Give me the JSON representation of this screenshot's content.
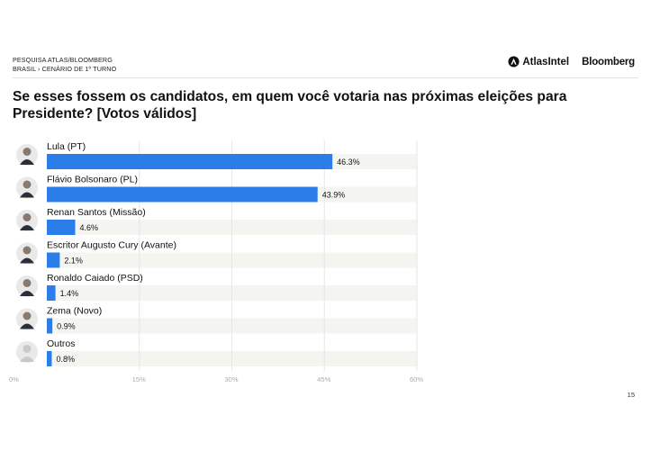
{
  "header": {
    "line1": "PESQUISA ATLAS/BLOOMBERG",
    "line2": "BRASIL › CENÁRIO DE 1º TURNO",
    "atlas_logo_text": "AtlasIntel",
    "bloomberg_logo_text": "Bloomberg"
  },
  "title": "Se esses fossem os candidatos, em quem você votaria nas próximas eleições para Presidente? [Votos válidos]",
  "page_number": "15",
  "chart_data": {
    "type": "bar",
    "orientation": "horizontal",
    "categories": [
      "Lula (PT)",
      "Flávio Bolsonaro (PL)",
      "Renan Santos (Missão)",
      "Escritor Augusto Cury (Avante)",
      "Ronaldo Caiado (PSD)",
      "Zema (Novo)",
      "Outros"
    ],
    "values": [
      46.3,
      43.9,
      4.6,
      2.1,
      1.4,
      0.9,
      0.8
    ],
    "value_labels": [
      "46.3%",
      "43.9%",
      "4.6%",
      "2.1%",
      "1.4%",
      "0.9%",
      "0.8%"
    ],
    "xlim": [
      0,
      65
    ],
    "xticks": [
      0,
      15,
      30,
      45,
      60
    ],
    "xtick_labels": [
      "0%",
      "15%",
      "30%",
      "45%",
      "60%"
    ],
    "grid": true,
    "bar_color": "#2b7de9",
    "track_color": "#f4f4f1",
    "grid_color": "#e6e6e6"
  }
}
